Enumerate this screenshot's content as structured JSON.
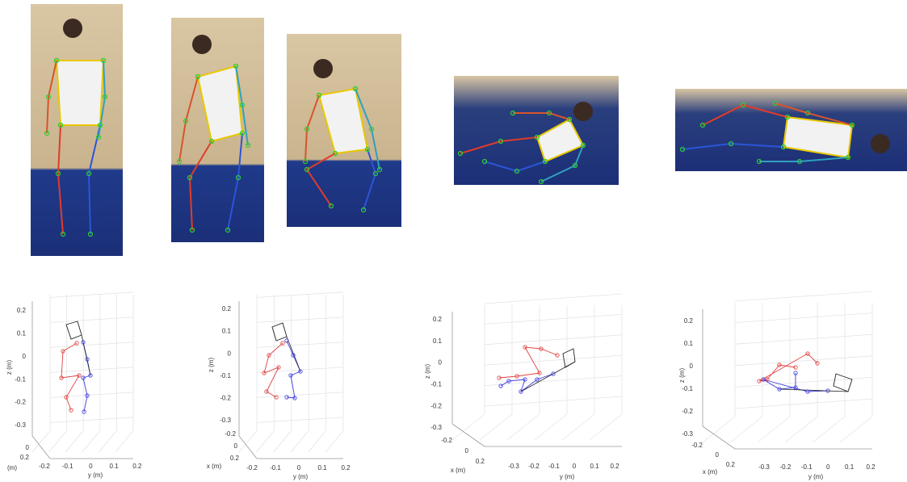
{
  "figure": {
    "plots": [
      {
        "z_label": "z (m)",
        "x_label": "(m)",
        "y_label": "y (m)",
        "z_ticks": [
          "0.2",
          "0.1",
          "0",
          "-0.1",
          "-0.2",
          "-0.3"
        ],
        "x_ticks": [
          "0",
          "0.2"
        ],
        "y_ticks": [
          "-0.2",
          "-0.1",
          "0",
          "0.1",
          "0.2"
        ]
      },
      {
        "z_label": "z (m)",
        "x_label": "x (m)",
        "y_label": "y (m)",
        "z_ticks": [
          "0.2",
          "0.1",
          "0",
          "-0.1",
          "-0.2",
          "-0.3"
        ],
        "x_ticks": [
          "-0.2",
          "0",
          "0.2"
        ],
        "y_ticks": [
          "-0.2",
          "-0.1",
          "0",
          "0.1",
          "0.2"
        ]
      },
      {
        "z_label": "z (m)",
        "x_label": "x (m)",
        "y_label": "y (m)",
        "z_ticks": [
          "0.2",
          "0.1",
          "0",
          "-0.1",
          "-0.2",
          "-0.3"
        ],
        "x_ticks": [
          "-0.2",
          "0",
          "0.2"
        ],
        "y_ticks": [
          "-0.3",
          "-0.2",
          "-0.1",
          "0",
          "0.1",
          "0.2"
        ]
      },
      {
        "z_label": "z (m)",
        "x_label": "x (m)",
        "y_label": "y (m)",
        "z_ticks": [
          "0.2",
          "0.1",
          "0",
          "-0.1",
          "-0.2",
          "-0.3"
        ],
        "x_ticks": [
          "-0.2",
          "0",
          "0.2"
        ],
        "y_ticks": [
          "-0.3",
          "-0.2",
          "-0.1",
          "0",
          "0.1",
          "0.2"
        ]
      }
    ]
  }
}
